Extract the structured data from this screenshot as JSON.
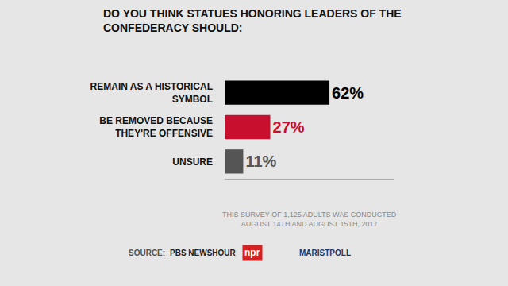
{
  "chart_data": {
    "type": "bar",
    "title": "DO YOU THINK STATUES HONORING LEADERS OF THE\nCONFEDERACY SHOULD:",
    "categories": [
      "REMAIN AS A HISTORICAL\nSYMBOL",
      "BE REMOVED BECAUSE\nTHEY'RE OFFENSIVE",
      "UNSURE"
    ],
    "values": [
      62,
      27,
      11
    ],
    "value_labels": [
      "62%",
      "27%",
      "11%"
    ],
    "colors": [
      "#000000",
      "#c8102e",
      "#555555"
    ],
    "orientation": "horizontal",
    "data_labels": true,
    "tick_labels": "y",
    "xlim": [
      0,
      100
    ],
    "xticks": [],
    "grid": false,
    "annotations": [
      "THIS SURVEY OF 1,125 ADULTS WAS CONDUCTED\nAUGUST 14TH AND AUGUST 15TH, 2017",
      "SOURCE:",
      "PBS NEWSHOUR",
      "npr",
      "MARISTPOLL"
    ]
  }
}
